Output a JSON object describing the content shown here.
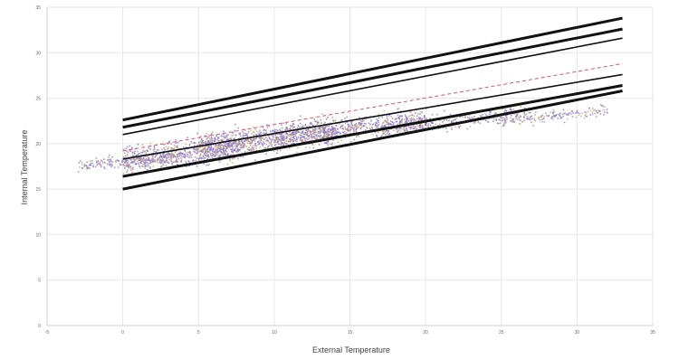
{
  "chart_data": {
    "type": "scatter",
    "title": "",
    "xlabel": "External Temperature",
    "ylabel": "Internal Temperature",
    "xlim": [
      -5,
      35
    ],
    "ylim": [
      0,
      35
    ],
    "x_ticks": [
      -5,
      0,
      5,
      10,
      15,
      20,
      25,
      30,
      35
    ],
    "y_ticks": [
      0,
      5,
      10,
      15,
      20,
      25,
      30,
      35
    ],
    "grid": true,
    "legend": "none",
    "colors": {
      "points_primary": "#8a73c9",
      "points_secondary": "#c9a55a",
      "points_tertiary": "#a0a0a0",
      "lines": "#111111",
      "dashed_line": "#e0506a"
    },
    "scatter_clusters": [
      {
        "x_range": [
          -3,
          4
        ],
        "y_center": 18.2,
        "y_spread": 1.2,
        "count": 220
      },
      {
        "x_range": [
          0,
          8
        ],
        "y_center": 19.0,
        "y_spread": 2.4,
        "count": 650
      },
      {
        "x_range": [
          5,
          14
        ],
        "y_center": 20.6,
        "y_spread": 2.4,
        "count": 800
      },
      {
        "x_range": [
          10,
          20
        ],
        "y_center": 21.8,
        "y_spread": 2.0,
        "count": 650
      },
      {
        "x_range": [
          17,
          27
        ],
        "y_center": 22.6,
        "y_spread": 1.6,
        "count": 320
      },
      {
        "x_range": [
          25,
          32
        ],
        "y_center": 23.2,
        "y_spread": 1.2,
        "count": 160
      }
    ],
    "series": [
      {
        "x": [
          0,
          33
        ],
        "y": [
          22.6,
          33.8
        ],
        "stroke_weight": "heavy"
      },
      {
        "x": [
          0,
          33
        ],
        "y": [
          21.8,
          32.6
        ],
        "stroke_weight": "heavy"
      },
      {
        "x": [
          0,
          33
        ],
        "y": [
          21.0,
          31.6
        ],
        "stroke_weight": "medium"
      },
      {
        "x": [
          0,
          33
        ],
        "y": [
          19.2,
          28.8
        ],
        "stroke_weight": "dashed"
      },
      {
        "x": [
          0,
          33
        ],
        "y": [
          18.3,
          27.6
        ],
        "stroke_weight": "medium"
      },
      {
        "x": [
          0,
          33
        ],
        "y": [
          16.4,
          26.4
        ],
        "stroke_weight": "heavy"
      },
      {
        "x": [
          0,
          33
        ],
        "y": [
          15.0,
          25.8
        ],
        "stroke_weight": "heavy"
      }
    ]
  }
}
